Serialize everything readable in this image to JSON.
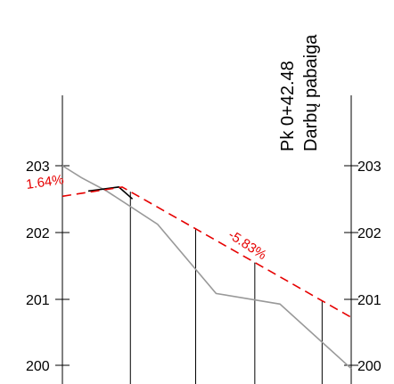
{
  "colors": {
    "axis": "#000000",
    "terrain": "#999999",
    "design": "#e60000",
    "existing": "#000000",
    "background": "#ffffff"
  },
  "station_label": {
    "chainage": "Pk 0+42.48",
    "name": "Darbų pabaiga"
  },
  "chart_data": {
    "type": "line",
    "y_axis": {
      "ylim": [
        199.75,
        203.55
      ],
      "ticks": [
        200,
        201,
        202,
        203
      ],
      "tick_labels": [
        "200",
        "201",
        "202",
        "203"
      ]
    },
    "x_range": [
      0,
      42.48
    ],
    "design_grades": [
      {
        "label": "1.64%",
        "value": 1.64
      },
      {
        "label": "-5.83%",
        "value": -5.83
      }
    ],
    "series": [
      {
        "role": "design",
        "style": "dashed",
        "points": [
          [
            0,
            202.54
          ],
          [
            8.8,
            202.68
          ],
          [
            42.48,
            200.72
          ]
        ]
      },
      {
        "role": "terrain",
        "style": "solid",
        "points": [
          [
            0,
            203.0
          ],
          [
            2.8,
            202.82
          ],
          [
            6.5,
            202.62
          ],
          [
            14.0,
            202.12
          ],
          [
            22.6,
            201.08
          ],
          [
            32.0,
            200.92
          ],
          [
            42.48,
            199.95
          ]
        ]
      },
      {
        "role": "existing",
        "style": "solid",
        "points": [
          [
            3.8,
            202.62
          ],
          [
            8.3,
            202.68
          ],
          [
            10.3,
            202.5
          ]
        ]
      }
    ],
    "stations": [
      10.0,
      19.6,
      28.3,
      38.2
    ]
  }
}
